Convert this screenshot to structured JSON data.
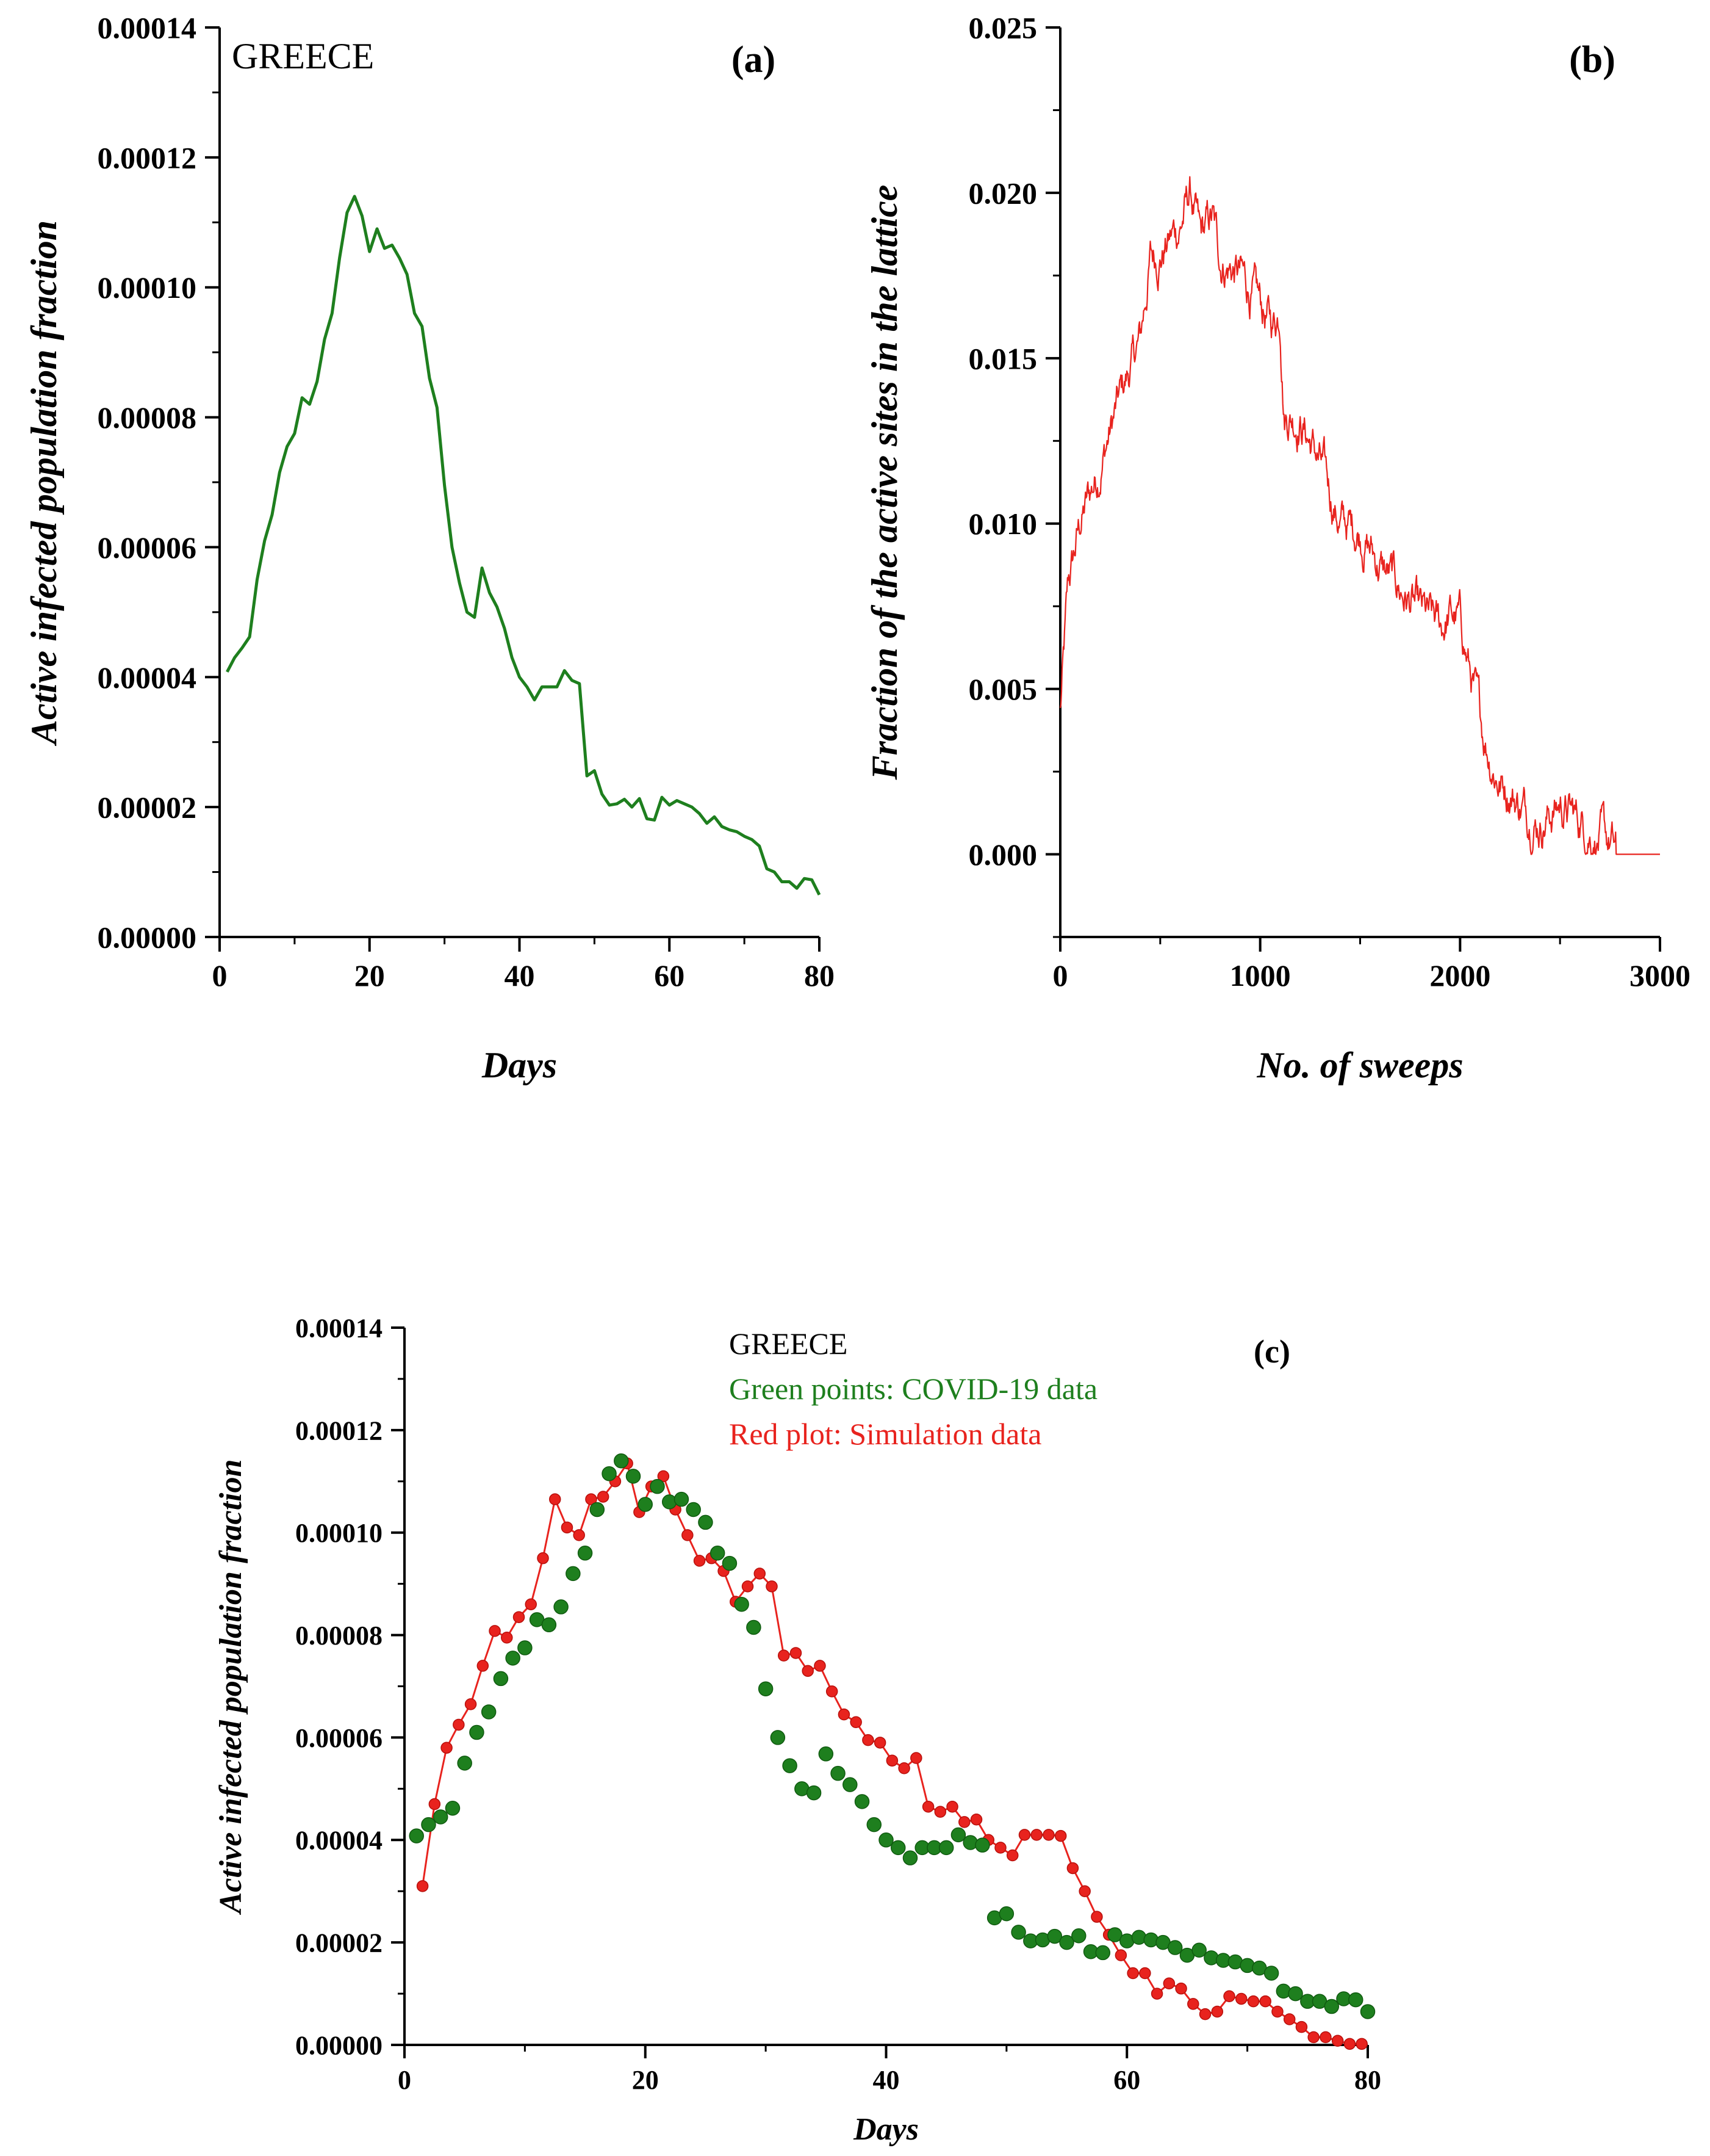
{
  "chart_data": [
    {
      "type": "line",
      "panel_label": "(a)",
      "annotation": "GREECE",
      "xlabel": "Days",
      "ylabel": "Active infected population fraction",
      "xlim": [
        0,
        80
      ],
      "ylim": [
        0,
        0.00014
      ],
      "xticks": [
        "0",
        "20",
        "40",
        "60",
        "80"
      ],
      "yticks": [
        "0.00000",
        "0.00002",
        "0.00004",
        "0.00006",
        "0.00008",
        "0.00010",
        "0.00012",
        "0.00014"
      ],
      "color": "#1e7f1e",
      "series": [
        {
          "x": [
            1,
            2,
            3,
            4,
            5,
            6,
            7,
            8,
            9,
            10,
            11,
            12,
            13,
            14,
            15,
            16,
            17,
            18,
            19,
            20,
            21,
            22,
            23,
            24,
            25,
            26,
            27,
            28,
            29,
            30,
            31,
            32,
            33,
            34,
            35,
            36,
            37,
            38,
            39,
            40,
            41,
            42,
            43,
            44,
            45,
            46,
            47,
            48,
            49,
            50,
            51,
            52,
            53,
            54,
            55,
            56,
            57,
            58,
            59,
            60,
            61,
            62,
            63,
            64,
            65,
            66,
            67,
            68,
            69,
            70,
            71,
            72,
            73,
            74,
            75,
            76,
            77,
            78,
            79,
            80
          ],
          "values": [
            4.08e-05,
            4.3e-05,
            4.45e-05,
            4.62e-05,
            5.5e-05,
            6.1e-05,
            6.5e-05,
            7.15e-05,
            7.55e-05,
            7.75e-05,
            8.3e-05,
            8.2e-05,
            8.55e-05,
            9.2e-05,
            9.6e-05,
            0.0001045,
            0.0001115,
            0.000114,
            0.000111,
            0.0001055,
            0.000109,
            0.000106,
            0.0001065,
            0.0001045,
            0.000102,
            9.6e-05,
            9.4e-05,
            8.6e-05,
            8.15e-05,
            6.95e-05,
            6e-05,
            5.45e-05,
            5e-05,
            4.92e-05,
            5.68e-05,
            5.3e-05,
            5.08e-05,
            4.75e-05,
            4.3e-05,
            4e-05,
            3.85e-05,
            3.65e-05,
            3.85e-05,
            3.85e-05,
            3.85e-05,
            4.1e-05,
            3.95e-05,
            3.9e-05,
            2.48e-05,
            2.56e-05,
            2.2e-05,
            2.03e-05,
            2.05e-05,
            2.12e-05,
            2e-05,
            2.13e-05,
            1.82e-05,
            1.8e-05,
            2.15e-05,
            2.03e-05,
            2.1e-05,
            2.05e-05,
            2e-05,
            1.9e-05,
            1.75e-05,
            1.85e-05,
            1.7e-05,
            1.65e-05,
            1.62e-05,
            1.55e-05,
            1.5e-05,
            1.4e-05,
            1.05e-05,
            1e-05,
            8.5e-06,
            8.5e-06,
            7.5e-06,
            9e-06,
            8.8e-06,
            6.5e-06
          ]
        }
      ]
    },
    {
      "type": "line",
      "panel_label": "(b)",
      "xlabel": "No. of sweeps",
      "ylabel": "Fraction of the active sites in the lattice",
      "xlim": [
        0,
        3000
      ],
      "ylim": [
        -0.0025,
        0.025
      ],
      "xticks": [
        "0",
        "1000",
        "2000",
        "3000"
      ],
      "yticks": [
        "0.000",
        "0.005",
        "0.010",
        "0.015",
        "0.020",
        "0.025"
      ],
      "color": "#e8231e",
      "envelope": {
        "x": [
          0,
          40,
          100,
          200,
          300,
          400,
          450,
          500,
          550,
          600,
          650,
          700,
          760,
          800,
          900,
          1000,
          1060,
          1100,
          1120,
          1200,
          1300,
          1400,
          1500,
          1600,
          1700,
          1800,
          1900,
          1950,
          2000,
          2050,
          2100,
          2150,
          2200,
          2250,
          2300,
          2400,
          2500,
          2600,
          2700,
          2760,
          2780,
          3000
        ],
        "values": [
          0.0043,
          0.008,
          0.01,
          0.0118,
          0.0138,
          0.0155,
          0.018,
          0.0182,
          0.0186,
          0.019,
          0.02,
          0.0185,
          0.0192,
          0.018,
          0.0175,
          0.0165,
          0.016,
          0.0165,
          0.0135,
          0.0132,
          0.0118,
          0.01,
          0.0098,
          0.0087,
          0.008,
          0.0072,
          0.0068,
          0.0072,
          0.007,
          0.0055,
          0.004,
          0.003,
          0.0022,
          0.002,
          0.0015,
          0.001,
          0.0015,
          0.001,
          0.0005,
          0.0002,
          0.0,
          0.0
        ]
      },
      "noise_amplitude": 0.0008,
      "sample_step": 3
    },
    {
      "type": "scatter",
      "panel_label": "(c)",
      "xlabel": "Days",
      "ylabel": "Active infected population fraction",
      "xlim": [
        0,
        80
      ],
      "ylim": [
        0,
        0.00014
      ],
      "xticks": [
        "0",
        "20",
        "40",
        "60",
        "80"
      ],
      "yticks": [
        "0.00000",
        "0.00002",
        "0.00004",
        "0.00006",
        "0.00008",
        "0.00010",
        "0.00012",
        "0.00014"
      ],
      "legend_text": [
        "GREECE",
        "Green points: COVID-19 data",
        "Red plot: Simulation data"
      ],
      "legend_colors": [
        "#000000",
        "#1e7f1e",
        "#e8231e"
      ],
      "series": [
        {
          "style": "points",
          "color": "#1e7f1e",
          "x": [
            1,
            2,
            3,
            4,
            5,
            6,
            7,
            8,
            9,
            10,
            11,
            12,
            13,
            14,
            15,
            16,
            17,
            18,
            19,
            20,
            21,
            22,
            23,
            24,
            25,
            26,
            27,
            28,
            29,
            30,
            31,
            32,
            33,
            34,
            35,
            36,
            37,
            38,
            39,
            40,
            41,
            42,
            43,
            44,
            45,
            46,
            47,
            48,
            49,
            50,
            51,
            52,
            53,
            54,
            55,
            56,
            57,
            58,
            59,
            60,
            61,
            62,
            63,
            64,
            65,
            66,
            67,
            68,
            69,
            70,
            71,
            72,
            73,
            74,
            75,
            76,
            77,
            78,
            79,
            80
          ],
          "values": [
            4.08e-05,
            4.3e-05,
            4.45e-05,
            4.62e-05,
            5.5e-05,
            6.1e-05,
            6.5e-05,
            7.15e-05,
            7.55e-05,
            7.75e-05,
            8.3e-05,
            8.2e-05,
            8.55e-05,
            9.2e-05,
            9.6e-05,
            0.0001045,
            0.0001115,
            0.000114,
            0.000111,
            0.0001055,
            0.000109,
            0.000106,
            0.0001065,
            0.0001045,
            0.000102,
            9.6e-05,
            9.4e-05,
            8.6e-05,
            8.15e-05,
            6.95e-05,
            6e-05,
            5.45e-05,
            5e-05,
            4.92e-05,
            5.68e-05,
            5.3e-05,
            5.08e-05,
            4.75e-05,
            4.3e-05,
            4e-05,
            3.85e-05,
            3.65e-05,
            3.85e-05,
            3.85e-05,
            3.85e-05,
            4.1e-05,
            3.95e-05,
            3.9e-05,
            2.48e-05,
            2.56e-05,
            2.2e-05,
            2.03e-05,
            2.05e-05,
            2.12e-05,
            2e-05,
            2.13e-05,
            1.82e-05,
            1.8e-05,
            2.15e-05,
            2.03e-05,
            2.1e-05,
            2.05e-05,
            2e-05,
            1.9e-05,
            1.75e-05,
            1.85e-05,
            1.7e-05,
            1.65e-05,
            1.62e-05,
            1.55e-05,
            1.5e-05,
            1.4e-05,
            1.05e-05,
            1e-05,
            8.5e-06,
            8.5e-06,
            7.5e-06,
            9e-06,
            8.8e-06,
            6.5e-06
          ]
        },
        {
          "style": "line-points",
          "color": "#e8231e",
          "x": [
            1.5,
            2.5,
            3.5,
            4.5,
            5.5,
            6.5,
            7.5,
            8.5,
            9.5,
            10.5,
            11.5,
            12.5,
            13.5,
            14.5,
            15.5,
            16.5,
            17.5,
            18.5,
            19.5,
            20.5,
            21.5,
            22.5,
            23.5,
            24.5,
            25.5,
            26.5,
            27.5,
            28.5,
            29.5,
            30.5,
            31.5,
            32.5,
            33.5,
            34.5,
            35.5,
            36.5,
            37.5,
            38.5,
            39.5,
            40.5,
            41.5,
            42.5,
            43.5,
            44.5,
            45.5,
            46.5,
            47.5,
            48.5,
            49.5,
            50.5,
            51.5,
            52.5,
            53.5,
            54.5,
            55.5,
            56.5,
            57.5,
            58.5,
            59.5,
            60.5,
            61.5,
            62.5,
            63.5,
            64.5,
            65.5,
            66.5,
            67.5,
            68.5,
            69.5,
            70.5,
            71.5,
            72.5,
            73.5,
            74.5,
            75.5,
            76.5,
            77.5,
            78.5,
            79.5
          ],
          "values": [
            3.1e-05,
            4.7e-05,
            5.8e-05,
            6.25e-05,
            6.65e-05,
            7.4e-05,
            8.08e-05,
            7.95e-05,
            8.35e-05,
            8.6e-05,
            9.5e-05,
            0.0001065,
            0.000101,
            9.95e-05,
            0.0001065,
            0.000107,
            0.00011,
            0.0001135,
            0.000104,
            0.000109,
            0.000111,
            0.0001045,
            9.95e-05,
            9.45e-05,
            9.5e-05,
            9.25e-05,
            8.65e-05,
            8.95e-05,
            9.2e-05,
            8.95e-05,
            7.6e-05,
            7.65e-05,
            7.3e-05,
            7.4e-05,
            6.9e-05,
            6.45e-05,
            6.3e-05,
            5.95e-05,
            5.9e-05,
            5.55e-05,
            5.4e-05,
            5.6e-05,
            4.65e-05,
            4.55e-05,
            4.65e-05,
            4.35e-05,
            4.4e-05,
            4e-05,
            3.85e-05,
            3.7e-05,
            4.1e-05,
            4.1e-05,
            4.1e-05,
            4.08e-05,
            3.45e-05,
            3e-05,
            2.5e-05,
            2.15e-05,
            1.75e-05,
            1.4e-05,
            1.4e-05,
            1e-05,
            1.2e-05,
            1.1e-05,
            8e-06,
            6e-06,
            6.5e-06,
            9.5e-06,
            9e-06,
            8.5e-06,
            8.5e-06,
            6.5e-06,
            5e-06,
            3.5e-06,
            1.5e-06,
            1.5e-06,
            8e-07,
            2e-07,
            2e-07
          ]
        }
      ]
    }
  ]
}
